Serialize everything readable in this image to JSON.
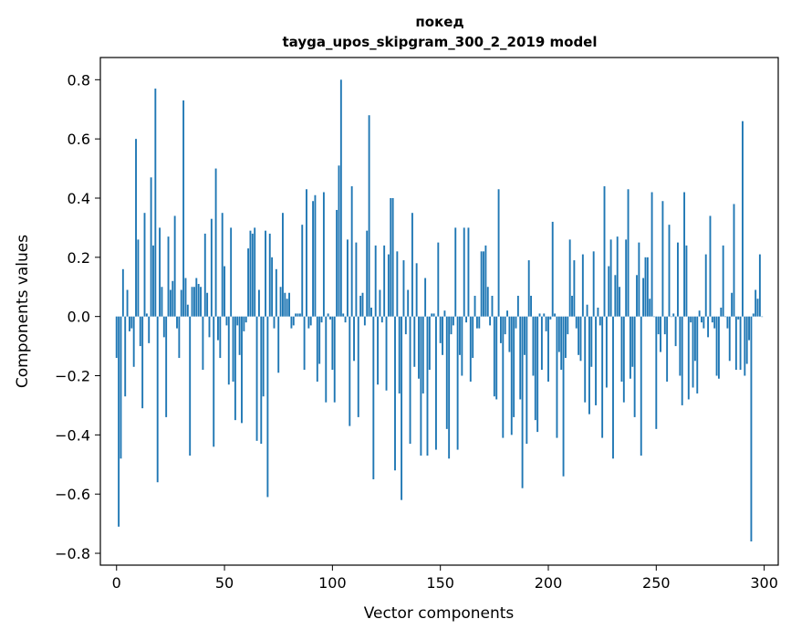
{
  "chart_data": {
    "type": "bar",
    "title": "покед",
    "subtitle": "tayga_upos_skipgram_300_2_2019 model",
    "xlabel": "Vector components",
    "ylabel": "Components values",
    "xlim": [
      -7.5,
      306.5
    ],
    "ylim": [
      -0.84,
      0.875
    ],
    "xticks": [
      0,
      50,
      100,
      150,
      200,
      250,
      300
    ],
    "yticks": [
      -0.8,
      -0.6,
      -0.4,
      -0.2,
      0.0,
      0.2,
      0.4,
      0.6,
      0.8
    ],
    "xtick_labels": [
      "0",
      "50",
      "100",
      "150",
      "200",
      "250",
      "300"
    ],
    "ytick_labels": [
      "−0.8",
      "−0.6",
      "−0.4",
      "−0.2",
      "0.0",
      "0.2",
      "0.4",
      "0.6",
      "0.8"
    ],
    "grid": false,
    "bar_color": "#1f77b4",
    "series": [
      {
        "values": [
          -0.14,
          -0.71,
          -0.48,
          0.16,
          -0.27,
          0.09,
          -0.05,
          -0.04,
          -0.17,
          0.6,
          0.26,
          -0.1,
          -0.31,
          0.35,
          0.01,
          -0.09,
          0.47,
          0.24,
          0.77,
          -0.56,
          0.3,
          0.1,
          -0.07,
          -0.34,
          0.27,
          0.09,
          0.12,
          0.34,
          -0.04,
          -0.14,
          0.09,
          0.73,
          0.13,
          0.04,
          -0.47,
          0.1,
          0.1,
          0.13,
          0.11,
          0.1,
          -0.18,
          0.28,
          0.08,
          -0.07,
          0.33,
          -0.44,
          0.5,
          -0.08,
          -0.14,
          0.35,
          0.17,
          -0.03,
          -0.23,
          0.3,
          -0.22,
          -0.35,
          -0.03,
          -0.13,
          -0.36,
          -0.05,
          -0.02,
          0.23,
          0.29,
          0.28,
          0.3,
          -0.42,
          0.09,
          -0.43,
          -0.27,
          0.29,
          -0.61,
          0.28,
          0.2,
          -0.04,
          0.16,
          -0.19,
          0.1,
          0.35,
          0.08,
          0.06,
          0.08,
          -0.04,
          -0.03,
          0.01,
          0.01,
          0.01,
          0.31,
          -0.18,
          0.43,
          -0.04,
          -0.03,
          0.39,
          0.41,
          -0.22,
          -0.16,
          -0.02,
          0.42,
          -0.29,
          0.01,
          -0.01,
          -0.18,
          -0.29,
          0.36,
          0.51,
          0.8,
          0.01,
          -0.02,
          0.26,
          -0.37,
          0.44,
          -0.15,
          0.25,
          -0.34,
          0.07,
          0.08,
          -0.03,
          0.29,
          0.68,
          0.03,
          -0.55,
          0.24,
          -0.23,
          0.09,
          -0.02,
          0.24,
          -0.25,
          0.21,
          0.4,
          0.4,
          -0.52,
          0.22,
          -0.26,
          -0.62,
          0.19,
          -0.06,
          0.09,
          -0.43,
          0.35,
          -0.17,
          0.18,
          -0.21,
          -0.47,
          -0.26,
          0.13,
          -0.47,
          -0.18,
          0.01,
          0.01,
          -0.45,
          0.25,
          -0.09,
          -0.13,
          0.02,
          -0.38,
          -0.48,
          -0.06,
          -0.03,
          0.3,
          -0.45,
          -0.13,
          -0.2,
          0.3,
          -0.02,
          0.3,
          -0.22,
          -0.14,
          0.07,
          -0.04,
          -0.04,
          0.22,
          0.22,
          0.24,
          0.1,
          -0.03,
          0.07,
          -0.27,
          -0.28,
          0.43,
          -0.09,
          -0.41,
          -0.06,
          0.02,
          -0.12,
          -0.4,
          -0.34,
          -0.04,
          0.07,
          -0.28,
          -0.58,
          -0.13,
          -0.43,
          0.19,
          0.07,
          -0.2,
          -0.35,
          -0.39,
          0.01,
          -0.18,
          0.01,
          -0.05,
          -0.22,
          -0.01,
          0.32,
          0.01,
          -0.41,
          -0.12,
          -0.18,
          -0.54,
          -0.14,
          -0.06,
          0.26,
          0.07,
          0.19,
          -0.04,
          -0.13,
          -0.15,
          0.21,
          -0.29,
          0.04,
          -0.33,
          -0.17,
          0.22,
          -0.3,
          0.03,
          -0.03,
          -0.41,
          0.44,
          -0.24,
          0.17,
          0.26,
          -0.48,
          0.14,
          0.27,
          0.1,
          -0.22,
          -0.29,
          0.26,
          0.43,
          -0.21,
          -0.17,
          -0.34,
          0.14,
          0.25,
          -0.47,
          0.13,
          0.2,
          0.2,
          0.06,
          0.42,
          0.0,
          -0.38,
          -0.06,
          -0.12,
          0.39,
          -0.06,
          -0.22,
          0.31,
          0.0,
          0.01,
          -0.1,
          0.25,
          -0.2,
          -0.3,
          0.42,
          0.24,
          -0.28,
          -0.02,
          -0.24,
          -0.15,
          -0.26,
          0.02,
          -0.02,
          -0.04,
          0.21,
          -0.07,
          0.34,
          -0.02,
          -0.04,
          -0.2,
          -0.21,
          0.03,
          0.24,
          0.0,
          -0.04,
          -0.15,
          0.08,
          0.38,
          -0.18,
          -0.01,
          -0.18,
          0.66,
          -0.2,
          -0.16,
          -0.08,
          -0.76,
          0.01,
          0.09,
          0.06,
          0.21,
          0.0
        ]
      }
    ]
  }
}
